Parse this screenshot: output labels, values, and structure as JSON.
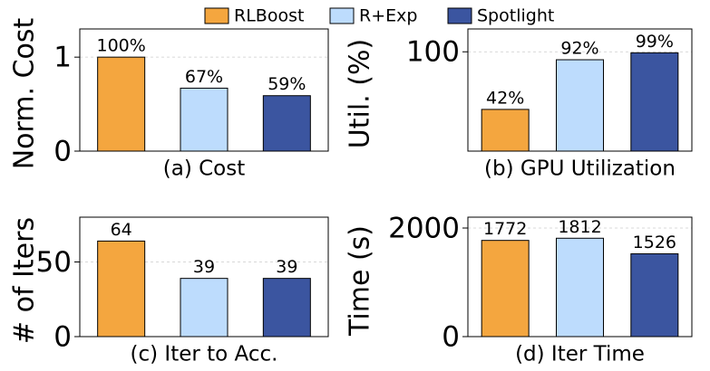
{
  "legend": [
    {
      "name": "RLBoost",
      "color": "#f4a63f"
    },
    {
      "name": "R+Exp",
      "color": "#bddcfd"
    },
    {
      "name": "Spotlight",
      "color": "#3b55a0"
    }
  ],
  "chart_data": [
    {
      "type": "bar",
      "title": "(a) Cost",
      "ylabel": "Norm. Cost",
      "values": [
        1.0,
        0.67,
        0.59
      ],
      "value_labels": [
        "100%",
        "67%",
        "59%"
      ],
      "ylim": [
        0,
        1.3
      ],
      "yticks": [
        0,
        1
      ],
      "grid": true
    },
    {
      "type": "bar",
      "title": "(b) GPU Utilization",
      "ylabel": "Util. (%)",
      "values": [
        42,
        92,
        99
      ],
      "value_labels": [
        "42%",
        "92%",
        "99%"
      ],
      "ylim": [
        0,
        123
      ],
      "yticks": [
        100
      ],
      "grid": true
    },
    {
      "type": "bar",
      "title": "(c) Iter to Acc.",
      "ylabel": "# of Iters",
      "values": [
        64,
        39,
        39
      ],
      "ylim": [
        0,
        80
      ],
      "yticks": [
        0,
        50
      ],
      "grid": true
    },
    {
      "type": "bar",
      "title": "(d) Iter Time",
      "ylabel": "Time (s)",
      "values": [
        1772,
        1812,
        1526
      ],
      "ylim": [
        0,
        2200
      ],
      "yticks": [
        0,
        2000
      ],
      "grid": true
    }
  ]
}
